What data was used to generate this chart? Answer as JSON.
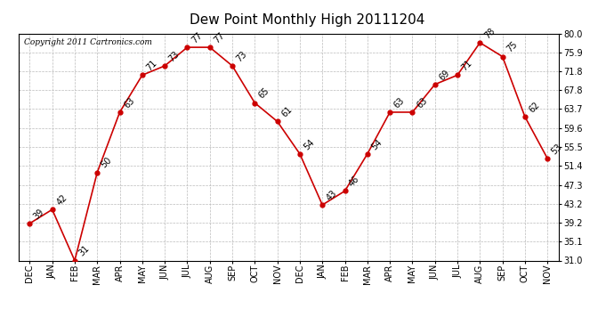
{
  "title": "Dew Point Monthly High 20111204",
  "copyright": "Copyright 2011 Cartronics.com",
  "months": [
    "DEC",
    "JAN",
    "FEB",
    "MAR",
    "APR",
    "MAY",
    "JUN",
    "JUL",
    "AUG",
    "SEP",
    "OCT",
    "NOV",
    "DEC",
    "JAN",
    "FEB",
    "MAR",
    "APR",
    "MAY",
    "JUN",
    "JUL",
    "AUG",
    "SEP",
    "OCT",
    "NOV"
  ],
  "values": [
    39,
    42,
    31,
    50,
    63,
    71,
    73,
    77,
    77,
    73,
    65,
    61,
    54,
    43,
    46,
    54,
    63,
    63,
    69,
    71,
    78,
    75,
    62,
    53
  ],
  "ylim": [
    31.0,
    80.0
  ],
  "yticks": [
    31.0,
    35.1,
    39.2,
    43.2,
    47.3,
    51.4,
    55.5,
    59.6,
    63.7,
    67.8,
    71.8,
    75.9,
    80.0
  ],
  "line_color": "#cc0000",
  "marker_color": "#cc0000",
  "background_color": "#ffffff",
  "grid_color": "#bbbbbb",
  "title_fontsize": 11,
  "label_fontsize": 7,
  "copyright_fontsize": 6.5,
  "tick_fontsize": 7
}
